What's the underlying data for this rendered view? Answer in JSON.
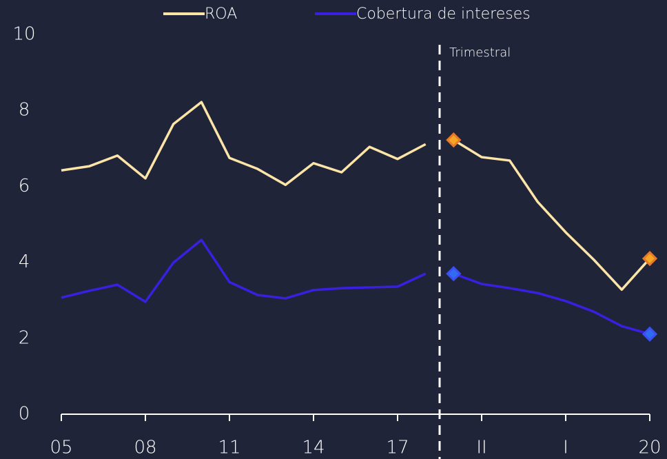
{
  "chart_data": {
    "type": "line",
    "categories": [
      "05",
      null,
      null,
      "08",
      null,
      null,
      "11",
      null,
      null,
      "14",
      null,
      null,
      "17",
      null,
      null,
      "II",
      null,
      null,
      "I",
      null,
      null,
      "20"
    ],
    "series": [
      {
        "name": "ROA",
        "color": "#fde5a8",
        "marker_color": "#f5a623",
        "marker_edge": "#e8782a",
        "values": [
          6.42,
          6.53,
          6.81,
          6.21,
          7.64,
          8.22,
          6.75,
          6.46,
          6.04,
          6.61,
          6.37,
          7.04,
          6.72,
          7.11,
          7.22,
          6.77,
          6.68,
          5.59,
          4.79,
          4.07,
          3.28,
          4.1
        ]
      },
      {
        "name": "Cobertura de intereses",
        "color": "#3b1fe0",
        "marker_color": "#2f6cf0",
        "marker_edge": "#3b4ff5",
        "values": [
          3.07,
          3.25,
          3.41,
          2.96,
          3.99,
          4.59,
          3.48,
          3.14,
          3.05,
          3.27,
          3.32,
          3.34,
          3.36,
          3.7,
          3.7,
          3.43,
          3.32,
          3.19,
          2.98,
          2.7,
          2.32,
          2.11
        ]
      }
    ],
    "markers": [
      14,
      21
    ],
    "divider": {
      "label": "Trimestral",
      "after_index": 13
    },
    "ylim": [
      0,
      10
    ],
    "yticks": [
      0,
      2,
      4,
      6,
      8,
      10
    ],
    "grid": false,
    "legend": "top"
  }
}
